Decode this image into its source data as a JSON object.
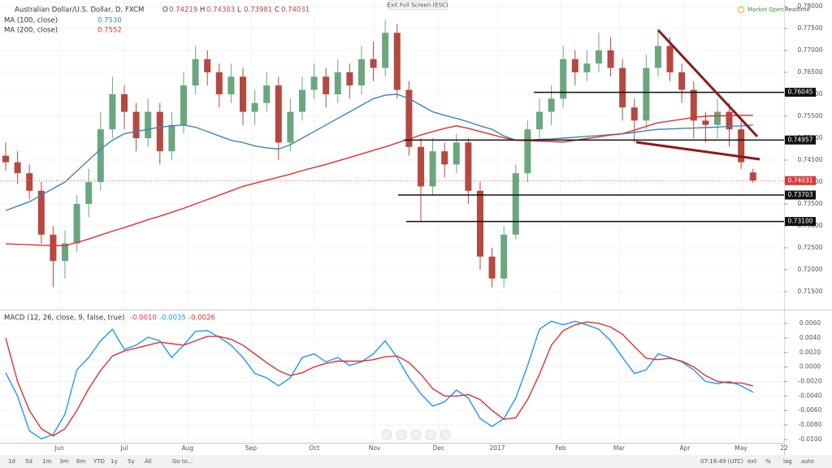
{
  "chart_data": [
    {
      "type": "candlestick",
      "title": "Australian Dollar/U.S. Dollar, D, FXCM",
      "ohlc_prefixes": [
        "O",
        "H",
        "L",
        "C"
      ],
      "open": [
        0.746,
        0.7445,
        0.742,
        0.738,
        0.728,
        0.722,
        0.726,
        0.735,
        0.74,
        0.752,
        0.76,
        0.756,
        0.75,
        0.756,
        0.747,
        0.753,
        0.762,
        0.768,
        0.765,
        0.76,
        0.764,
        0.756,
        0.758,
        0.762,
        0.749,
        0.756,
        0.761,
        0.764,
        0.76,
        0.765,
        0.762,
        0.768,
        0.766,
        0.774,
        0.761,
        0.748,
        0.739,
        0.747,
        0.744,
        0.749,
        0.738,
        0.723,
        0.718,
        0.728,
        0.742,
        0.752,
        0.756,
        0.759,
        0.768,
        0.765,
        0.767,
        0.77,
        0.766,
        0.757,
        0.754,
        0.766,
        0.771,
        0.765,
        0.761,
        0.754,
        0.753,
        0.756,
        0.752,
        0.74219
      ],
      "high": [
        0.749,
        0.747,
        0.744,
        0.74,
        0.73,
        0.729,
        0.737,
        0.743,
        0.756,
        0.764,
        0.762,
        0.758,
        0.759,
        0.758,
        0.756,
        0.765,
        0.771,
        0.77,
        0.767,
        0.767,
        0.766,
        0.761,
        0.765,
        0.764,
        0.759,
        0.764,
        0.767,
        0.766,
        0.768,
        0.767,
        0.771,
        0.772,
        0.777,
        0.776,
        0.763,
        0.75,
        0.75,
        0.749,
        0.751,
        0.75,
        0.74,
        0.725,
        0.73,
        0.744,
        0.754,
        0.759,
        0.762,
        0.771,
        0.77,
        0.77,
        0.774,
        0.773,
        0.768,
        0.759,
        0.769,
        0.775,
        0.773,
        0.767,
        0.763,
        0.756,
        0.759,
        0.758,
        0.754,
        0.74303
      ],
      "low": [
        0.7425,
        0.7395,
        0.736,
        0.726,
        0.716,
        0.718,
        0.724,
        0.732,
        0.738,
        0.75,
        0.752,
        0.747,
        0.748,
        0.744,
        0.745,
        0.751,
        0.76,
        0.762,
        0.757,
        0.758,
        0.753,
        0.753,
        0.756,
        0.745,
        0.747,
        0.754,
        0.759,
        0.757,
        0.758,
        0.759,
        0.76,
        0.763,
        0.764,
        0.759,
        0.746,
        0.731,
        0.737,
        0.741,
        0.742,
        0.735,
        0.72,
        0.716,
        0.716,
        0.727,
        0.74,
        0.75,
        0.753,
        0.757,
        0.762,
        0.763,
        0.765,
        0.764,
        0.754,
        0.749,
        0.752,
        0.764,
        0.763,
        0.758,
        0.75,
        0.749,
        0.75,
        0.748,
        0.743,
        0.73981
      ],
      "close": [
        0.7445,
        0.742,
        0.738,
        0.728,
        0.722,
        0.726,
        0.735,
        0.74,
        0.752,
        0.76,
        0.756,
        0.75,
        0.756,
        0.747,
        0.753,
        0.762,
        0.768,
        0.765,
        0.76,
        0.764,
        0.756,
        0.758,
        0.762,
        0.749,
        0.756,
        0.761,
        0.764,
        0.76,
        0.765,
        0.762,
        0.768,
        0.766,
        0.774,
        0.761,
        0.748,
        0.739,
        0.747,
        0.744,
        0.749,
        0.738,
        0.723,
        0.718,
        0.728,
        0.742,
        0.752,
        0.756,
        0.759,
        0.768,
        0.765,
        0.767,
        0.77,
        0.766,
        0.757,
        0.754,
        0.766,
        0.771,
        0.765,
        0.761,
        0.754,
        0.753,
        0.756,
        0.752,
        0.7445,
        0.74031
      ],
      "up_color": "#6aa77e",
      "down_color": "#b5483f",
      "indicators": [
        {
          "name": "MA (100, close)",
          "color": "#3b86b5",
          "readout": {
            "value": 0.753,
            "label": "0.7530"
          },
          "values": [
            0.7335,
            0.7345,
            0.7355,
            0.737,
            0.7385,
            0.74,
            0.7425,
            0.745,
            0.7475,
            0.7495,
            0.751,
            0.7515,
            0.752,
            0.7525,
            0.7528,
            0.753,
            0.7525,
            0.7515,
            0.7505,
            0.7495,
            0.749,
            0.7482,
            0.7478,
            0.7475,
            0.7485,
            0.75,
            0.7515,
            0.753,
            0.7545,
            0.756,
            0.7575,
            0.759,
            0.7598,
            0.76,
            0.759,
            0.7575,
            0.756,
            0.7552,
            0.7545,
            0.7537,
            0.7528,
            0.752,
            0.7505,
            0.7495,
            0.7495,
            0.7497,
            0.7498,
            0.75,
            0.7502,
            0.7504,
            0.7506,
            0.7508,
            0.751,
            0.7513,
            0.7517,
            0.752,
            0.7521,
            0.7522,
            0.7523,
            0.7524,
            0.7525,
            0.7527,
            0.7528,
            0.753
          ]
        },
        {
          "name": "MA (200, close)",
          "color": "#e03030",
          "readout": {
            "value": 0.7552,
            "label": "0.7552"
          },
          "values": [
            0.7259,
            0.7258,
            0.7257,
            0.7256,
            0.7255,
            0.7255,
            0.7262,
            0.727,
            0.7279,
            0.7288,
            0.7296,
            0.7305,
            0.7314,
            0.7322,
            0.7331,
            0.734,
            0.735,
            0.736,
            0.737,
            0.738,
            0.739,
            0.7397,
            0.7404,
            0.7411,
            0.7418,
            0.7426,
            0.7433,
            0.744,
            0.7448,
            0.7456,
            0.7464,
            0.7472,
            0.748,
            0.7489,
            0.7498,
            0.7507,
            0.7515,
            0.7522,
            0.7528,
            0.7522,
            0.7515,
            0.7508,
            0.7501,
            0.7495,
            0.7494,
            0.7493,
            0.7492,
            0.7491,
            0.7495,
            0.7499,
            0.7503,
            0.7507,
            0.751,
            0.7518,
            0.7527,
            0.7535,
            0.7539,
            0.7543,
            0.7547,
            0.755,
            0.7551,
            0.7551,
            0.7552,
            0.7552
          ]
        }
      ],
      "levels": [
        0.76045,
        0.74957,
        0.73703,
        {
          "value": 0.731,
          "label": "0.73100"
        }
      ],
      "ylim": [
        0.71111,
        0.78148
      ],
      "yticks": [
        {
          "value": 0.78,
          "label": "0.78000"
        },
        {
          "value": 0.775,
          "label": "0.77500"
        },
        {
          "value": 0.77,
          "label": "0.77000"
        },
        {
          "value": 0.765,
          "label": "0.76500"
        },
        {
          "value": 0.76,
          "label": "0.76000"
        },
        {
          "value": 0.755,
          "label": "0.75500"
        },
        {
          "value": 0.75,
          "label": "0.75000"
        },
        {
          "value": 0.745,
          "label": "0.74500"
        },
        {
          "value": 0.74,
          "label": "0.74000"
        },
        {
          "value": 0.735,
          "label": "0.73500"
        },
        {
          "value": 0.73,
          "label": "0.73000"
        },
        {
          "value": 0.725,
          "label": "0.72500"
        },
        {
          "value": 0.72,
          "label": "0.72000"
        },
        {
          "value": 0.715,
          "label": "0.71500"
        }
      ],
      "xlim": [
        -0.48,
        65.62
      ],
      "xticks": [
        {
          "value": 4.52,
          "label": "Jun"
        },
        {
          "value": 10.0,
          "label": "Jul"
        },
        {
          "value": 15.34,
          "label": "Aug"
        },
        {
          "value": 20.68,
          "label": "Sep"
        },
        {
          "value": 26.03,
          "label": "Oct"
        },
        {
          "value": 31.1,
          "label": "Nov"
        },
        {
          "value": 36.5,
          "label": "Dec"
        },
        {
          "value": 41.44,
          "label": "2017"
        },
        {
          "value": 46.78,
          "label": "Feb"
        },
        {
          "value": 51.71,
          "label": "Mar"
        },
        {
          "value": 57.26,
          "label": "Apr"
        },
        {
          "value": 61.99,
          "label": "May"
        },
        {
          "value": 65.62,
          "label": "22"
        }
      ],
      "grid": true
    },
    {
      "type": "line",
      "title": "MACD (12, 26, close, 9, false, true)",
      "readout": [
        {
          "value": -0.001,
          "label": "-0.0010",
          "color": "#e0306a"
        },
        {
          "value": -0.0035,
          "label": "-0.0035",
          "color": "#2196f3"
        },
        {
          "value": -0.0026,
          "label": "-0.0026",
          "color": "#e03030"
        }
      ],
      "series": [
        {
          "color": "#2196f3",
          "values": [
            -0.0008,
            -0.004,
            -0.0088,
            -0.0099,
            -0.0093,
            -0.0065,
            -0.0004,
            0.0013,
            0.0036,
            0.0052,
            0.0024,
            0.003,
            0.0041,
            0.0036,
            0.0013,
            0.003,
            0.0049,
            0.005,
            0.0041,
            0.003,
            0.0013,
            -0.0009,
            -0.0015,
            -0.0026,
            -0.0015,
            0.0013,
            0.0018,
            0.0007,
            0.0013,
            0.0002,
            0.0007,
            0.0018,
            0.0036,
            0.0013,
            -0.0015,
            -0.0037,
            -0.0054,
            -0.0048,
            -0.0032,
            -0.0043,
            -0.0071,
            -0.0082,
            -0.0071,
            -0.0043,
            0.0002,
            0.0052,
            0.0063,
            0.0058,
            0.0063,
            0.0058,
            0.0052,
            0.0036,
            0.0013,
            -0.0009,
            -0.0004,
            0.0018,
            0.0013,
            0.0007,
            -0.0004,
            -0.002,
            -0.0023,
            -0.002,
            -0.0026,
            -0.0035
          ]
        },
        {
          "color": "#e03030",
          "values": [
            0.004,
            -0.002,
            -0.006,
            -0.0085,
            -0.0095,
            -0.0085,
            -0.006,
            -0.003,
            -0.0005,
            0.0015,
            0.0022,
            0.0026,
            0.003,
            0.0034,
            0.0032,
            0.003,
            0.0036,
            0.0042,
            0.0042,
            0.0038,
            0.003,
            0.0018,
            0.0006,
            -0.0005,
            -0.0012,
            -0.0008,
            0.0,
            0.0005,
            0.0008,
            0.0008,
            0.0008,
            0.001,
            0.0014,
            0.0015,
            0.0006,
            -0.001,
            -0.003,
            -0.004,
            -0.004,
            -0.0038,
            -0.0045,
            -0.006,
            -0.0072,
            -0.007,
            -0.0045,
            -0.001,
            0.003,
            0.005,
            0.0058,
            0.0062,
            0.006,
            0.0055,
            0.0045,
            0.0028,
            0.0012,
            0.001,
            0.0012,
            0.0008,
            0.0,
            -0.0012,
            -0.002,
            -0.0022,
            -0.0022,
            -0.0026
          ]
        }
      ],
      "ylim": [
        -0.01213,
        0.00768
      ],
      "yticks": [
        {
          "value": 0.006,
          "label": "0.0060"
        },
        {
          "value": 0.004,
          "label": "0.0040"
        },
        {
          "value": 0.002,
          "label": "0.0020"
        },
        {
          "value": 0.0,
          "label": "0.0000"
        },
        {
          "value": -0.002,
          "label": "-0.0020"
        },
        {
          "value": -0.004,
          "label": "-0.0040"
        },
        {
          "value": -0.006,
          "label": "-0.0060"
        },
        {
          "value": -0.008,
          "label": "-0.0080"
        },
        {
          "value": -0.01,
          "label": "-0.0100"
        }
      ]
    }
  ],
  "ui": {
    "notice": "Exit Full Screen (ESC)",
    "market": "Market Open",
    "feed": "Realtime",
    "ranges": [
      "1d",
      "5d",
      "1m",
      "3m",
      "6m",
      "YTD",
      "1y",
      "5y",
      "All"
    ],
    "goto": "Go to...",
    "clock": "07:18:49 (UTC)",
    "scale_buttons": [
      "ext",
      "%",
      "log",
      "auto"
    ]
  }
}
